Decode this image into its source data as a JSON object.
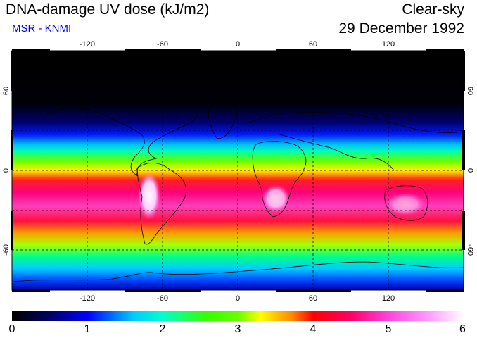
{
  "header": {
    "title": "DNA-damage UV dose (kJ/m2)",
    "subtitle": "MSR - KNMI",
    "sky_condition": "Clear-sky",
    "date": "29 December 1992"
  },
  "map": {
    "lon_ticks_top": [
      "-120",
      "-60",
      "0",
      "60",
      "120"
    ],
    "lon_ticks_bottom": [
      "-120",
      "-60",
      "0",
      "60",
      "120"
    ],
    "lat_ticks_left": [
      "60",
      "0",
      "-60"
    ],
    "lat_ticks_right": [
      "60",
      "0",
      "-60"
    ]
  },
  "colorbar": {
    "ticks": [
      "0",
      "1",
      "2",
      "3",
      "4",
      "5",
      "6"
    ]
  },
  "colors": {
    "subtitle": "#0000ee",
    "background": "#ffffff"
  }
}
